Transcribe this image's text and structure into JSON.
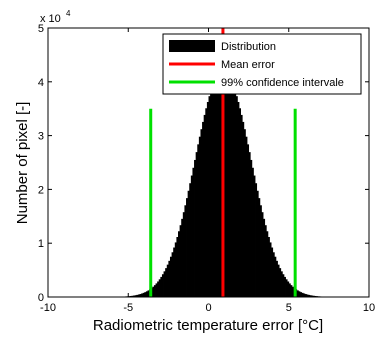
{
  "chart_data": {
    "type": "bar",
    "title": "",
    "xlabel": "Radiometric temperature error [°C]",
    "ylabel": "Number of pixel [-]",
    "y_multiplier": "x 10",
    "y_multiplier_exponent": "4",
    "xlim": [
      -10,
      10
    ],
    "ylim": [
      0,
      5
    ],
    "xticks": [
      -10,
      -5,
      0,
      5,
      10
    ],
    "yticks": [
      0,
      1,
      2,
      3,
      4,
      5
    ],
    "grid": false,
    "legend_position": "top-right",
    "histogram": {
      "name": "Distribution",
      "color": "#000000",
      "center": 0.9,
      "sigma": 1.75,
      "peak": 4.2,
      "bin_width": 0.1,
      "range": [
        -6,
        8
      ]
    },
    "mean_error": {
      "name": "Mean error",
      "x": 0.9,
      "y_top": 5.0,
      "color": "#ff0000"
    },
    "confidence_interval": {
      "name": "99% confidence intervale",
      "x": [
        -3.6,
        5.4
      ],
      "y_top": 3.5,
      "color": "#00e000"
    },
    "legend": [
      {
        "label": "Distribution",
        "kind": "box",
        "color": "#000000"
      },
      {
        "label": "Mean error",
        "kind": "line",
        "color": "#ff0000"
      },
      {
        "label": "99% confidence intervale",
        "kind": "line",
        "color": "#00e000"
      }
    ]
  }
}
